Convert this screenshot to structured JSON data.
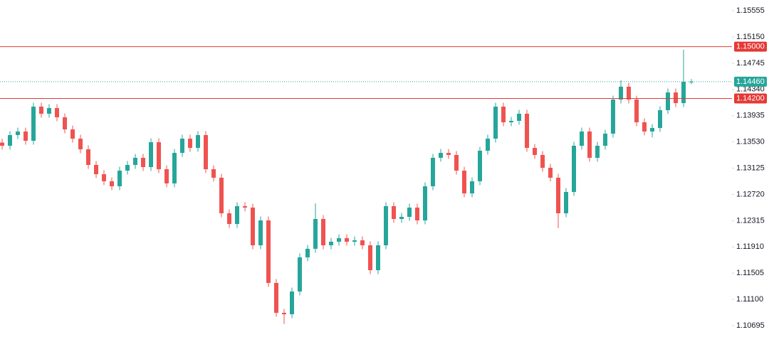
{
  "chart_data": {
    "type": "candlestick",
    "up_color": "#26a69a",
    "down_color": "#ef5350",
    "ylim": [
      1.1052,
      1.1572
    ],
    "yticks": [
      1.15555,
      {
        "value": 1.1515,
        "label": "1.15150"
      },
      1.14745,
      {
        "value": 1.1434,
        "label": "1.14340"
      },
      1.13935,
      {
        "value": 1.1353,
        "label": "1.13530"
      },
      1.13125,
      {
        "value": 1.1272,
        "label": "1.12720"
      },
      1.12315,
      {
        "value": 1.1191,
        "label": "1.11910"
      },
      1.11505,
      {
        "value": 1.111,
        "label": "1.11100"
      },
      1.10695
    ],
    "levels": [
      {
        "value": 1.15,
        "label": "1.15000",
        "color": "#e53935",
        "style": "solid"
      },
      {
        "value": 1.142,
        "label": "1.14200",
        "color": "#e53935",
        "style": "solid"
      },
      {
        "value": 1.1446,
        "label": "1.14460",
        "color": "#26a69a",
        "style": "dotted"
      }
    ],
    "candles": [
      [
        1.1352,
        1.1358,
        1.13411,
        1.13471
      ],
      [
        1.13471,
        1.13696,
        1.13411,
        1.13636
      ],
      [
        1.13636,
        1.13751,
        1.13576,
        1.13691
      ],
      [
        1.13691,
        1.13751,
        1.13488,
        1.13548
      ],
      [
        1.13548,
        1.14135,
        1.13488,
        1.14075
      ],
      [
        1.14075,
        1.14135,
        1.13905,
        1.13965
      ],
      [
        1.13965,
        1.14113,
        1.13905,
        1.14053
      ],
      [
        1.14053,
        1.14113,
        1.1385,
        1.1391
      ],
      [
        1.1391,
        1.1397,
        1.13663,
        1.13723
      ],
      [
        1.13723,
        1.13783,
        1.13521,
        1.13581
      ],
      [
        1.13581,
        1.13641,
        1.13356,
        1.13416
      ],
      [
        1.13416,
        1.13476,
        1.13115,
        1.13175
      ],
      [
        1.13175,
        1.13235,
        1.12972,
        1.13032
      ],
      [
        1.13032,
        1.13092,
        1.12863,
        1.12923
      ],
      [
        1.12923,
        1.12983,
        1.12786,
        1.12846
      ],
      [
        1.12846,
        1.13147,
        1.12786,
        1.13087
      ],
      [
        1.13087,
        1.13235,
        1.13027,
        1.13175
      ],
      [
        1.13175,
        1.13345,
        1.13115,
        1.13285
      ],
      [
        1.13285,
        1.13345,
        1.13082,
        1.13142
      ],
      [
        1.13142,
        1.13586,
        1.13082,
        1.13526
      ],
      [
        1.13526,
        1.13586,
        1.13049,
        1.13109
      ],
      [
        1.13109,
        1.13169,
        1.1283,
        1.1289
      ],
      [
        1.1289,
        1.13421,
        1.1283,
        1.13361
      ],
      [
        1.13361,
        1.13641,
        1.13301,
        1.13581
      ],
      [
        1.13581,
        1.13641,
        1.13378,
        1.13438
      ],
      [
        1.13438,
        1.13696,
        1.13378,
        1.13636
      ],
      [
        1.13636,
        1.13696,
        1.13049,
        1.13109
      ],
      [
        1.13109,
        1.13169,
        1.12918,
        1.12978
      ],
      [
        1.12978,
        1.13038,
        1.12369,
        1.12429
      ],
      [
        1.12429,
        1.12489,
        1.12204,
        1.12264
      ],
      [
        1.12264,
        1.12599,
        1.12204,
        1.12539
      ],
      [
        1.12539,
        1.12599,
        1.12457,
        1.12517
      ],
      [
        1.12517,
        1.12577,
        1.11875,
        1.11935
      ],
      [
        1.11935,
        1.12379,
        1.11875,
        1.12319
      ],
      [
        1.12319,
        1.12379,
        1.11294,
        1.11354
      ],
      [
        1.11354,
        1.11414,
        1.10833,
        1.10893
      ],
      [
        1.10893,
        1.10953,
        1.1072,
        1.10871
      ],
      [
        1.10871,
        1.11282,
        1.10811,
        1.11222
      ],
      [
        1.11222,
        1.11809,
        1.11162,
        1.11749
      ],
      [
        1.11749,
        1.11941,
        1.11689,
        1.11881
      ],
      [
        1.11881,
        1.1258,
        1.11821,
        1.12341
      ],
      [
        1.12341,
        1.12401,
        1.11875,
        1.11935
      ],
      [
        1.11935,
        1.1205,
        1.11875,
        1.1199
      ],
      [
        1.1199,
        1.12105,
        1.1193,
        1.12045
      ],
      [
        1.12045,
        1.12105,
        1.1193,
        1.1199
      ],
      [
        1.1199,
        1.12072,
        1.1193,
        1.12012
      ],
      [
        1.12012,
        1.12072,
        1.11875,
        1.11935
      ],
      [
        1.11935,
        1.11995,
        1.11491,
        1.11551
      ],
      [
        1.11551,
        1.11995,
        1.11491,
        1.11935
      ],
      [
        1.11935,
        1.12599,
        1.11875,
        1.12539
      ],
      [
        1.12539,
        1.12599,
        1.12281,
        1.12341
      ],
      [
        1.12341,
        1.12434,
        1.12281,
        1.12374
      ],
      [
        1.12374,
        1.12577,
        1.12314,
        1.12517
      ],
      [
        1.12517,
        1.12577,
        1.12259,
        1.12319
      ],
      [
        1.12319,
        1.12906,
        1.12259,
        1.12846
      ],
      [
        1.12846,
        1.13345,
        1.12786,
        1.13285
      ],
      [
        1.13285,
        1.13421,
        1.13225,
        1.13361
      ],
      [
        1.13361,
        1.13421,
        1.13269,
        1.13329
      ],
      [
        1.13329,
        1.13389,
        1.13027,
        1.13087
      ],
      [
        1.13087,
        1.13147,
        1.12676,
        1.12736
      ],
      [
        1.12736,
        1.12983,
        1.12676,
        1.12923
      ],
      [
        1.12923,
        1.13454,
        1.12863,
        1.13394
      ],
      [
        1.13394,
        1.13641,
        1.13334,
        1.13581
      ],
      [
        1.13581,
        1.14135,
        1.13521,
        1.14075
      ],
      [
        1.14075,
        1.14135,
        1.13773,
        1.13833
      ],
      [
        1.13833,
        1.13915,
        1.13773,
        1.13855
      ],
      [
        1.13855,
        1.14025,
        1.13795,
        1.13965
      ],
      [
        1.13965,
        1.14025,
        1.13378,
        1.13438
      ],
      [
        1.13438,
        1.13498,
        1.13269,
        1.13329
      ],
      [
        1.13329,
        1.13389,
        1.13071,
        1.13131
      ],
      [
        1.13131,
        1.13191,
        1.12918,
        1.12978
      ],
      [
        1.12978,
        1.13038,
        1.122,
        1.12429
      ],
      [
        1.12429,
        1.12818,
        1.12369,
        1.12758
      ],
      [
        1.12758,
        1.13531,
        1.12698,
        1.13471
      ],
      [
        1.13471,
        1.13751,
        1.13411,
        1.13691
      ],
      [
        1.13691,
        1.13751,
        1.13225,
        1.13285
      ],
      [
        1.13285,
        1.13531,
        1.13225,
        1.13471
      ],
      [
        1.13471,
        1.13718,
        1.13411,
        1.13658
      ],
      [
        1.13658,
        1.14244,
        1.13598,
        1.14184
      ],
      [
        1.14184,
        1.1448,
        1.14124,
        1.14382
      ],
      [
        1.14382,
        1.14442,
        1.14124,
        1.14184
      ],
      [
        1.14184,
        1.14244,
        1.13773,
        1.13833
      ],
      [
        1.13833,
        1.13893,
        1.13631,
        1.13691
      ],
      [
        1.13691,
        1.13805,
        1.136,
        1.13745
      ],
      [
        1.13745,
        1.1408,
        1.13685,
        1.1402
      ],
      [
        1.1402,
        1.14354,
        1.1396,
        1.14294
      ],
      [
        1.14294,
        1.14354,
        1.14069,
        1.14129
      ],
      [
        1.14129,
        1.14952,
        1.14069,
        1.14458
      ],
      [
        1.14458,
        1.145,
        1.1442,
        1.1446
      ]
    ]
  }
}
